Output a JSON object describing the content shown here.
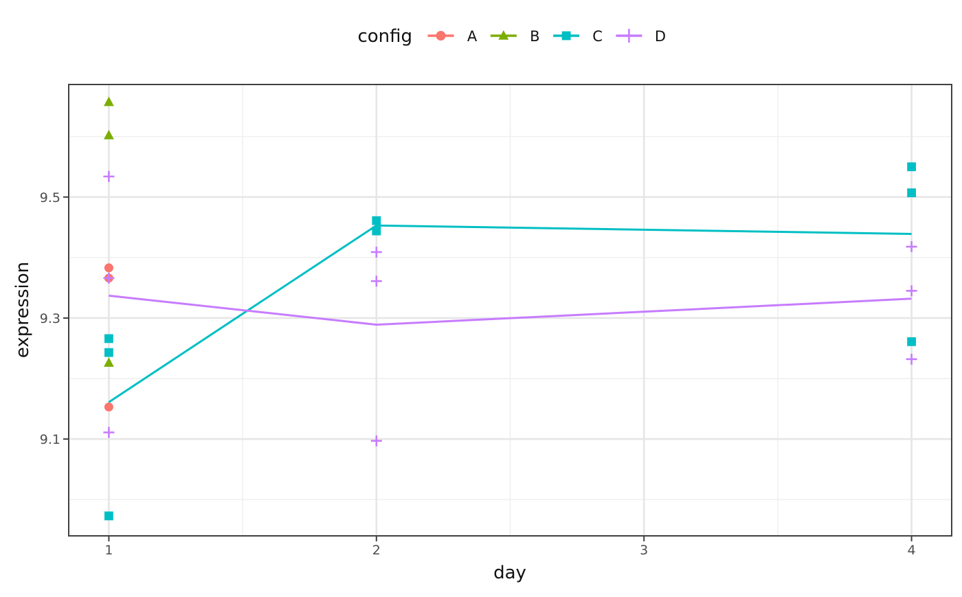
{
  "figure": {
    "background": "#FFFFFF",
    "panel_background": "#FFFFFF",
    "panel_border_color": "#404040",
    "grid_major_color": "#E6E6E6",
    "grid_minor_color": "#F0F0F0",
    "tick_mark_color": "#404040",
    "tick_label_color": "#4D4D4D",
    "title_color": "#111111"
  },
  "legend": {
    "title": "config",
    "position": "top-center",
    "entries": [
      {
        "label": "A",
        "marker": "circle",
        "color": "#F8766D"
      },
      {
        "label": "B",
        "marker": "triangle",
        "color": "#7CAE00"
      },
      {
        "label": "C",
        "marker": "square",
        "color": "#00BFC4"
      },
      {
        "label": "D",
        "marker": "plus",
        "color": "#C77CFF"
      }
    ]
  },
  "axes": {
    "x": {
      "label": "day",
      "tick_labels": [
        "1",
        "2",
        "3",
        "4"
      ],
      "tick_values": [
        1,
        2,
        3,
        4
      ],
      "minor_gridlines": [
        1.5,
        2.5,
        3.5
      ],
      "range": [
        0.85,
        4.15
      ]
    },
    "y": {
      "label": "expression",
      "tick_labels": [
        "9.1",
        "9.3",
        "9.5"
      ],
      "tick_values": [
        9.1,
        9.3,
        9.5
      ],
      "minor_gridlines": [
        9.0,
        9.2,
        9.4,
        9.6
      ],
      "range": [
        8.94,
        9.686
      ]
    }
  },
  "chart_data": {
    "type": "scatter",
    "x_variable": "day",
    "y_variable": "expression",
    "group_variable": "config",
    "grid": true,
    "series": [
      {
        "name": "A",
        "marker": "circle",
        "color": "#F8766D",
        "points": [
          [
            1,
            9.383
          ],
          [
            1,
            9.366
          ],
          [
            1,
            9.153
          ]
        ],
        "trend_line": null
      },
      {
        "name": "B",
        "marker": "triangle",
        "color": "#7CAE00",
        "points": [
          [
            1,
            9.657
          ],
          [
            1,
            9.602
          ],
          [
            1,
            9.226
          ]
        ],
        "trend_line": null
      },
      {
        "name": "C",
        "marker": "square",
        "color": "#00BFC4",
        "points": [
          [
            1,
            9.266
          ],
          [
            1,
            9.243
          ],
          [
            1,
            8.973
          ],
          [
            2,
            9.461
          ],
          [
            2,
            9.444
          ],
          [
            4,
            9.55
          ],
          [
            4,
            9.507
          ],
          [
            4,
            9.261
          ]
        ],
        "trend_line": [
          [
            1,
            9.161
          ],
          [
            2,
            9.453
          ],
          [
            4,
            9.439
          ]
        ]
      },
      {
        "name": "D",
        "marker": "plus",
        "color": "#C77CFF",
        "points": [
          [
            1,
            9.534
          ],
          [
            1,
            9.366
          ],
          [
            1,
            9.111
          ],
          [
            2,
            9.409
          ],
          [
            2,
            9.361
          ],
          [
            2,
            9.097
          ],
          [
            4,
            9.418
          ],
          [
            4,
            9.345
          ],
          [
            4,
            9.232
          ]
        ],
        "trend_line": [
          [
            1,
            9.337
          ],
          [
            2,
            9.289
          ],
          [
            4,
            9.332
          ]
        ]
      }
    ]
  }
}
